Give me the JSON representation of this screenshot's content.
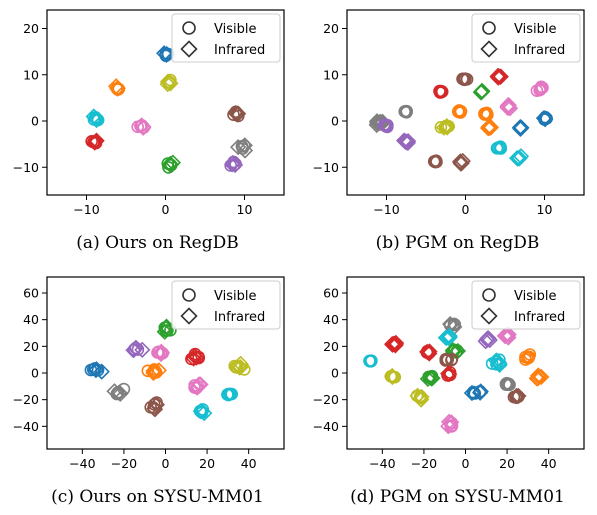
{
  "chart_data": [
    {
      "type": "scatter",
      "caption": "(a) Ours on RegDB",
      "xlim": [
        -15,
        15
      ],
      "ylim": [
        -16,
        24
      ],
      "xticks": [
        -10,
        0,
        10
      ],
      "yticks": [
        -10,
        0,
        10,
        20
      ],
      "legend": {
        "placement": "top-right",
        "entries": [
          "Visible",
          "Infrared"
        ]
      },
      "clusters": [
        {
          "color": "#1f77b4",
          "x": 0.0,
          "y": 14.5,
          "spread": 0.8,
          "marker": "mixed"
        },
        {
          "color": "#ff7f0e",
          "x": -6.0,
          "y": 7.0,
          "spread": 0.9,
          "marker": "mixed"
        },
        {
          "color": "#bcbd22",
          "x": 0.5,
          "y": 8.5,
          "spread": 0.8,
          "marker": "mixed"
        },
        {
          "color": "#17becf",
          "x": -8.8,
          "y": 0.5,
          "spread": 0.9,
          "marker": "mixed"
        },
        {
          "color": "#d62728",
          "x": -9.0,
          "y": -4.5,
          "spread": 1.0,
          "marker": "mixed"
        },
        {
          "color": "#e377c2",
          "x": -3.0,
          "y": -1.0,
          "spread": 0.9,
          "marker": "mixed"
        },
        {
          "color": "#2ca02c",
          "x": 0.5,
          "y": -9.5,
          "spread": 0.8,
          "marker": "mixed"
        },
        {
          "color": "#8c564b",
          "x": 8.8,
          "y": 1.5,
          "spread": 0.8,
          "marker": "mixed"
        },
        {
          "color": "#7f7f7f",
          "x": 9.8,
          "y": -5.8,
          "spread": 0.9,
          "marker": "mixed"
        },
        {
          "color": "#9467bd",
          "x": 8.8,
          "y": -9.3,
          "spread": 0.8,
          "marker": "mixed"
        }
      ]
    },
    {
      "type": "scatter",
      "caption": "(b) PGM on RegDB",
      "xlim": [
        -15,
        15
      ],
      "ylim": [
        -16,
        24
      ],
      "xticks": [
        -10,
        0,
        10
      ],
      "yticks": [
        -10,
        0,
        10,
        20
      ],
      "legend": {
        "placement": "top-right",
        "entries": [
          "Visible",
          "Infrared"
        ]
      },
      "clusters": [
        {
          "color": "#8c564b",
          "x": -0.2,
          "y": 9.0,
          "spread": 0.5,
          "marker": "circle"
        },
        {
          "color": "#d62728",
          "x": 4.2,
          "y": 9.5,
          "spread": 0.5,
          "marker": "diamond"
        },
        {
          "color": "#e377c2",
          "x": 9.5,
          "y": 7.0,
          "spread": 0.8,
          "marker": "circle"
        },
        {
          "color": "#d62728",
          "x": -3.0,
          "y": 6.5,
          "spread": 0.5,
          "marker": "circle"
        },
        {
          "color": "#2ca02c",
          "x": 2.0,
          "y": 6.5,
          "spread": 0.5,
          "marker": "diamond"
        },
        {
          "color": "#ff7f0e",
          "x": -0.8,
          "y": 2.0,
          "spread": 0.4,
          "marker": "circle"
        },
        {
          "color": "#ff7f0e",
          "x": 2.5,
          "y": 1.5,
          "spread": 0.4,
          "marker": "circle"
        },
        {
          "color": "#7f7f7f",
          "x": -7.5,
          "y": 2.0,
          "spread": 0.4,
          "marker": "circle"
        },
        {
          "color": "#e377c2",
          "x": 5.5,
          "y": 3.0,
          "spread": 0.5,
          "marker": "diamond"
        },
        {
          "color": "#ff7f0e",
          "x": 3.0,
          "y": -1.5,
          "spread": 0.5,
          "marker": "diamond"
        },
        {
          "color": "#7f7f7f",
          "x": -11.0,
          "y": -0.5,
          "spread": 0.7,
          "marker": "diamond"
        },
        {
          "color": "#9467bd",
          "x": -10.2,
          "y": -1.0,
          "spread": 0.5,
          "marker": "circle"
        },
        {
          "color": "#bcbd22",
          "x": -2.5,
          "y": -1.2,
          "spread": 0.9,
          "marker": "mixed"
        },
        {
          "color": "#1f77b4",
          "x": 10.0,
          "y": 0.5,
          "spread": 0.6,
          "marker": "mixed"
        },
        {
          "color": "#1f77b4",
          "x": 7.0,
          "y": -1.5,
          "spread": 0.4,
          "marker": "diamond"
        },
        {
          "color": "#9467bd",
          "x": -7.5,
          "y": -4.5,
          "spread": 0.5,
          "marker": "diamond"
        },
        {
          "color": "#17becf",
          "x": 4.2,
          "y": -5.8,
          "spread": 0.5,
          "marker": "circle"
        },
        {
          "color": "#17becf",
          "x": 6.8,
          "y": -8.0,
          "spread": 0.5,
          "marker": "diamond"
        },
        {
          "color": "#8c564b",
          "x": -3.8,
          "y": -8.8,
          "spread": 0.5,
          "marker": "circle"
        },
        {
          "color": "#8c564b",
          "x": -0.5,
          "y": -9.0,
          "spread": 0.5,
          "marker": "diamond"
        }
      ]
    },
    {
      "type": "scatter",
      "caption": "(c) Ours on SYSU-MM01",
      "xlim": [
        -57,
        57
      ],
      "ylim": [
        -57,
        72
      ],
      "xticks": [
        -40,
        -20,
        0,
        20,
        40
      ],
      "yticks": [
        -40,
        -20,
        0,
        20,
        40,
        60
      ],
      "legend": {
        "placement": "top-right",
        "entries": [
          "Visible",
          "Infrared"
        ]
      },
      "clusters": [
        {
          "color": "#2ca02c",
          "x": 1.0,
          "y": 33.0,
          "spread": 4.0,
          "marker": "mixed"
        },
        {
          "color": "#9467bd",
          "x": -14.0,
          "y": 18.0,
          "spread": 4.0,
          "marker": "mixed"
        },
        {
          "color": "#e377c2",
          "x": -3.0,
          "y": 15.0,
          "spread": 3.0,
          "marker": "mixed"
        },
        {
          "color": "#d62728",
          "x": 14.0,
          "y": 12.0,
          "spread": 4.0,
          "marker": "mixed"
        },
        {
          "color": "#1f77b4",
          "x": -34.0,
          "y": 3.0,
          "spread": 4.5,
          "marker": "mixed"
        },
        {
          "color": "#ff7f0e",
          "x": -5.0,
          "y": 1.0,
          "spread": 4.5,
          "marker": "mixed"
        },
        {
          "color": "#bcbd22",
          "x": 36.0,
          "y": 4.0,
          "spread": 4.5,
          "marker": "mixed"
        },
        {
          "color": "#7f7f7f",
          "x": -22.0,
          "y": -14.0,
          "spread": 4.0,
          "marker": "mixed"
        },
        {
          "color": "#e377c2",
          "x": 15.0,
          "y": -10.0,
          "spread": 3.5,
          "marker": "mixed"
        },
        {
          "color": "#17becf",
          "x": 31.0,
          "y": -16.0,
          "spread": 2.0,
          "marker": "circle"
        },
        {
          "color": "#17becf",
          "x": 17.0,
          "y": -29.0,
          "spread": 3.0,
          "marker": "mixed"
        },
        {
          "color": "#8c564b",
          "x": -5.0,
          "y": -25.0,
          "spread": 4.5,
          "marker": "mixed"
        }
      ]
    },
    {
      "type": "scatter",
      "caption": "(d) PGM on SYSU-MM01",
      "xlim": [
        -57,
        57
      ],
      "ylim": [
        -57,
        72
      ],
      "xticks": [
        -40,
        -20,
        0,
        20,
        40
      ],
      "yticks": [
        -40,
        -20,
        0,
        20,
        40,
        60
      ],
      "legend": {
        "placement": "top-right",
        "entries": [
          "Visible",
          "Infrared"
        ]
      },
      "clusters": [
        {
          "color": "#7f7f7f",
          "x": -6.0,
          "y": 36.0,
          "spread": 2.5,
          "marker": "mixed"
        },
        {
          "color": "#9467bd",
          "x": 10.0,
          "y": 25.0,
          "spread": 3.0,
          "marker": "diamond"
        },
        {
          "color": "#e377c2",
          "x": 20.0,
          "y": 28.0,
          "spread": 2.0,
          "marker": "diamond"
        },
        {
          "color": "#17becf",
          "x": -8.0,
          "y": 27.0,
          "spread": 2.0,
          "marker": "diamond"
        },
        {
          "color": "#d62728",
          "x": -34.0,
          "y": 22.0,
          "spread": 2.0,
          "marker": "diamond"
        },
        {
          "color": "#d62728",
          "x": -18.0,
          "y": 15.0,
          "spread": 2.5,
          "marker": "mixed"
        },
        {
          "color": "#2ca02c",
          "x": -5.0,
          "y": 17.0,
          "spread": 3.0,
          "marker": "mixed"
        },
        {
          "color": "#8c564b",
          "x": -8.0,
          "y": 10.0,
          "spread": 3.0,
          "marker": "circle"
        },
        {
          "color": "#17becf",
          "x": 15.0,
          "y": 8.0,
          "spread": 3.0,
          "marker": "mixed"
        },
        {
          "color": "#ff7f0e",
          "x": 30.0,
          "y": 12.0,
          "spread": 2.5,
          "marker": "circle"
        },
        {
          "color": "#17becf",
          "x": -46.0,
          "y": 9.0,
          "spread": 1.5,
          "marker": "circle"
        },
        {
          "color": "#bcbd22",
          "x": -35.0,
          "y": -3.0,
          "spread": 2.0,
          "marker": "mixed"
        },
        {
          "color": "#2ca02c",
          "x": -17.0,
          "y": -3.0,
          "spread": 2.5,
          "marker": "mixed"
        },
        {
          "color": "#d62728",
          "x": -8.0,
          "y": -1.0,
          "spread": 2.5,
          "marker": "mixed"
        },
        {
          "color": "#1f77b4",
          "x": 5.0,
          "y": -14.0,
          "spread": 4.5,
          "marker": "mixed"
        },
        {
          "color": "#ff7f0e",
          "x": 35.0,
          "y": -3.0,
          "spread": 2.5,
          "marker": "diamond"
        },
        {
          "color": "#7f7f7f",
          "x": 20.0,
          "y": -8.0,
          "spread": 2.0,
          "marker": "circle"
        },
        {
          "color": "#bcbd22",
          "x": -22.0,
          "y": -18.0,
          "spread": 3.0,
          "marker": "mixed"
        },
        {
          "color": "#8c564b",
          "x": 24.0,
          "y": -18.0,
          "spread": 3.0,
          "marker": "mixed"
        },
        {
          "color": "#e377c2",
          "x": -7.0,
          "y": -38.0,
          "spread": 3.0,
          "marker": "mixed"
        }
      ]
    }
  ]
}
